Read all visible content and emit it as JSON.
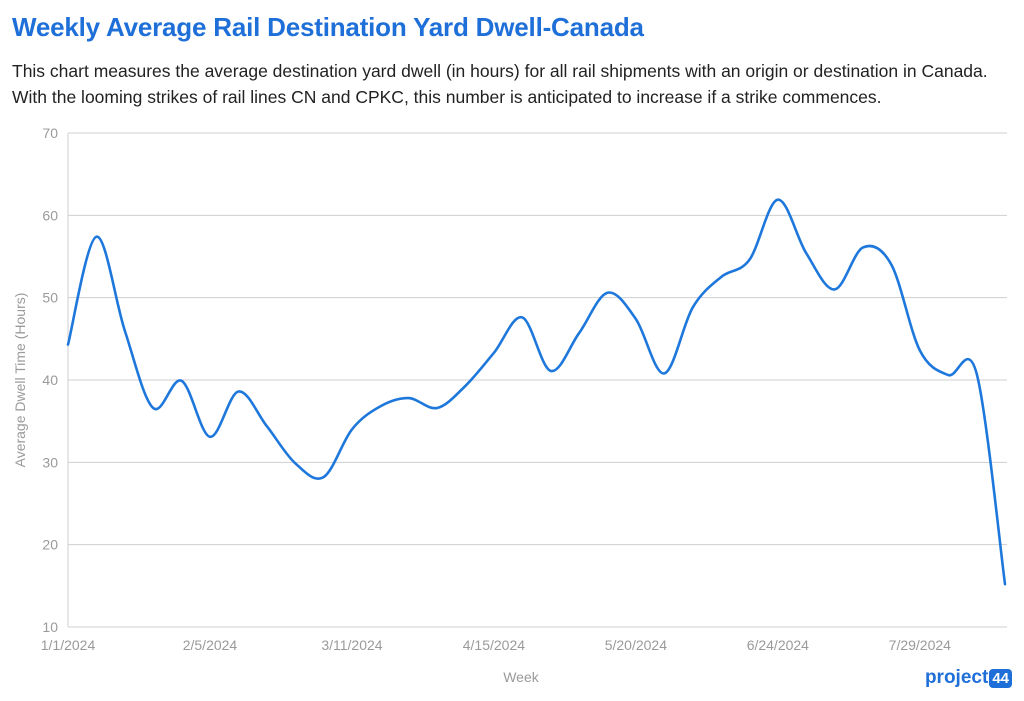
{
  "header": {
    "title": "Weekly Average Rail Destination Yard Dwell-Canada",
    "subtitle": "This chart measures the average destination yard dwell (in hours) for all rail shipments with an origin or destination in Canada. With the looming strikes of rail lines CN and CPKC, this number is anticipated to increase if a strike commences."
  },
  "colors": {
    "title": "#1f6fd9",
    "line": "#1e78dc",
    "grid": "#cfcfcf",
    "axis_text": "#9a9a9a"
  },
  "logo": {
    "word": "project",
    "badge": "44",
    "color": "#1f6fd9"
  },
  "chart_data": {
    "type": "line",
    "title": "Weekly Average Rail Destination Yard Dwell-Canada",
    "xlabel": "Week",
    "ylabel": "Average Dwell Time (Hours)",
    "ylim": [
      10,
      70
    ],
    "yticks": [
      10,
      20,
      30,
      40,
      50,
      60,
      70
    ],
    "xtick_labels": [
      "1/1/2024",
      "2/5/2024",
      "3/11/2024",
      "4/15/2024",
      "5/20/2024",
      "6/24/2024",
      "7/29/2024"
    ],
    "xtick_weeks": [
      0,
      5,
      10,
      15,
      20,
      25,
      30
    ],
    "grid": true,
    "series": [
      {
        "weeks": [
          "1/1/2024",
          "1/8/2024",
          "1/15/2024",
          "1/22/2024",
          "1/29/2024",
          "2/5/2024",
          "2/12/2024",
          "2/19/2024",
          "2/26/2024",
          "3/4/2024",
          "3/11/2024",
          "3/18/2024",
          "3/25/2024",
          "4/1/2024",
          "4/8/2024",
          "4/15/2024",
          "4/22/2024",
          "4/29/2024",
          "5/6/2024",
          "5/13/2024",
          "5/20/2024",
          "5/27/2024",
          "6/3/2024",
          "6/10/2024",
          "6/17/2024",
          "6/24/2024",
          "7/1/2024",
          "7/8/2024",
          "7/15/2024",
          "7/22/2024",
          "7/29/2024",
          "8/5/2024",
          "8/12/2024",
          "8/19/2024"
        ],
        "values": [
          44.3,
          57.4,
          46.0,
          36.6,
          39.9,
          33.1,
          38.6,
          34.4,
          29.9,
          28.2,
          34.0,
          36.8,
          37.8,
          36.6,
          39.3,
          43.3,
          47.6,
          41.1,
          45.7,
          50.6,
          47.4,
          40.8,
          48.8,
          52.5,
          54.6,
          61.9,
          55.4,
          51.0,
          56.1,
          54.0,
          43.6,
          40.6,
          40.8,
          15.2
        ]
      }
    ]
  }
}
